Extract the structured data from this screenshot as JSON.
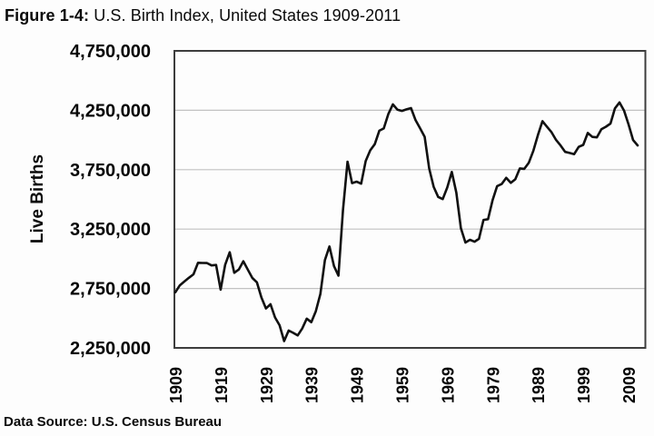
{
  "title": {
    "prefix": "Figure 1-4:",
    "text": " U.S. Birth Index, United States 1909-2011"
  },
  "footer": {
    "text": "Data Source: U.S. Census Bureau"
  },
  "colors": {
    "line": "#111111",
    "plot_border": "#3d3d3d",
    "gridline": "#c2c2c2",
    "text": "#060606",
    "background": "#fdfdfd"
  },
  "chart_data": {
    "type": "line",
    "title": "Figure 1-4: U.S. Birth Index, United States 1909-2011",
    "xlabel": "",
    "ylabel": "Live Births",
    "xlim": [
      1909,
      2011
    ],
    "ylim": [
      2250000,
      4750000
    ],
    "grid": "horizontal",
    "legend": "none",
    "y_ticks": {
      "values": [
        2250000,
        2750000,
        3250000,
        3750000,
        4250000,
        4750000
      ],
      "labels": [
        "2,250,000",
        "2,750,000",
        "3,250,000",
        "3,750,000",
        "4,250,000",
        "4,750,000"
      ]
    },
    "x_ticks": {
      "values": [
        1909,
        1919,
        1929,
        1939,
        1949,
        1959,
        1969,
        1979,
        1989,
        1999,
        2009
      ],
      "labels": [
        "1909",
        "1919",
        "1929",
        "1939",
        "1949",
        "1959",
        "1969",
        "1979",
        "1989",
        "1999",
        "2009"
      ]
    },
    "gridlines_at": [
      2750000,
      3250000,
      3750000,
      4250000
    ],
    "x": [
      1909,
      1910,
      1911,
      1912,
      1913,
      1914,
      1915,
      1916,
      1917,
      1918,
      1919,
      1920,
      1921,
      1922,
      1923,
      1924,
      1925,
      1926,
      1927,
      1928,
      1929,
      1930,
      1931,
      1932,
      1933,
      1934,
      1935,
      1936,
      1937,
      1938,
      1939,
      1940,
      1941,
      1942,
      1943,
      1944,
      1945,
      1946,
      1947,
      1948,
      1949,
      1950,
      1951,
      1952,
      1953,
      1954,
      1955,
      1956,
      1957,
      1958,
      1959,
      1960,
      1961,
      1962,
      1963,
      1964,
      1965,
      1966,
      1967,
      1968,
      1969,
      1970,
      1971,
      1972,
      1973,
      1974,
      1975,
      1976,
      1977,
      1978,
      1979,
      1980,
      1981,
      1982,
      1983,
      1984,
      1985,
      1986,
      1987,
      1988,
      1989,
      1990,
      1991,
      1992,
      1993,
      1994,
      1995,
      1996,
      1997,
      1998,
      1999,
      2000,
      2001,
      2002,
      2003,
      2004,
      2005,
      2006,
      2007,
      2008,
      2009,
      2010,
      2011
    ],
    "series": [
      {
        "name": "Live Births",
        "values": [
          2718000,
          2777000,
          2809000,
          2840000,
          2869000,
          2966000,
          2965000,
          2964000,
          2944000,
          2948000,
          2740000,
          2950000,
          3055000,
          2882000,
          2910000,
          2979000,
          2909000,
          2839000,
          2802000,
          2674000,
          2582000,
          2618000,
          2506000,
          2440000,
          2307000,
          2396000,
          2377000,
          2355000,
          2413000,
          2496000,
          2466000,
          2559000,
          2703000,
          2989000,
          3104000,
          2939000,
          2858000,
          3411000,
          3817000,
          3637000,
          3649000,
          3632000,
          3823000,
          3913000,
          3965000,
          4078000,
          4097000,
          4218000,
          4300000,
          4255000,
          4245000,
          4258000,
          4268000,
          4167000,
          4098000,
          4027000,
          3760000,
          3606000,
          3521000,
          3502000,
          3600000,
          3731000,
          3556000,
          3258000,
          3137000,
          3160000,
          3144000,
          3168000,
          3327000,
          3333000,
          3494000,
          3612000,
          3629000,
          3681000,
          3639000,
          3669000,
          3761000,
          3757000,
          3809000,
          3910000,
          4041000,
          4158000,
          4111000,
          4065000,
          4000000,
          3953000,
          3900000,
          3891000,
          3881000,
          3942000,
          3959000,
          4059000,
          4026000,
          4022000,
          4090000,
          4112000,
          4138000,
          4266000,
          4316000,
          4248000,
          4131000,
          3999000,
          3954000
        ]
      }
    ]
  }
}
